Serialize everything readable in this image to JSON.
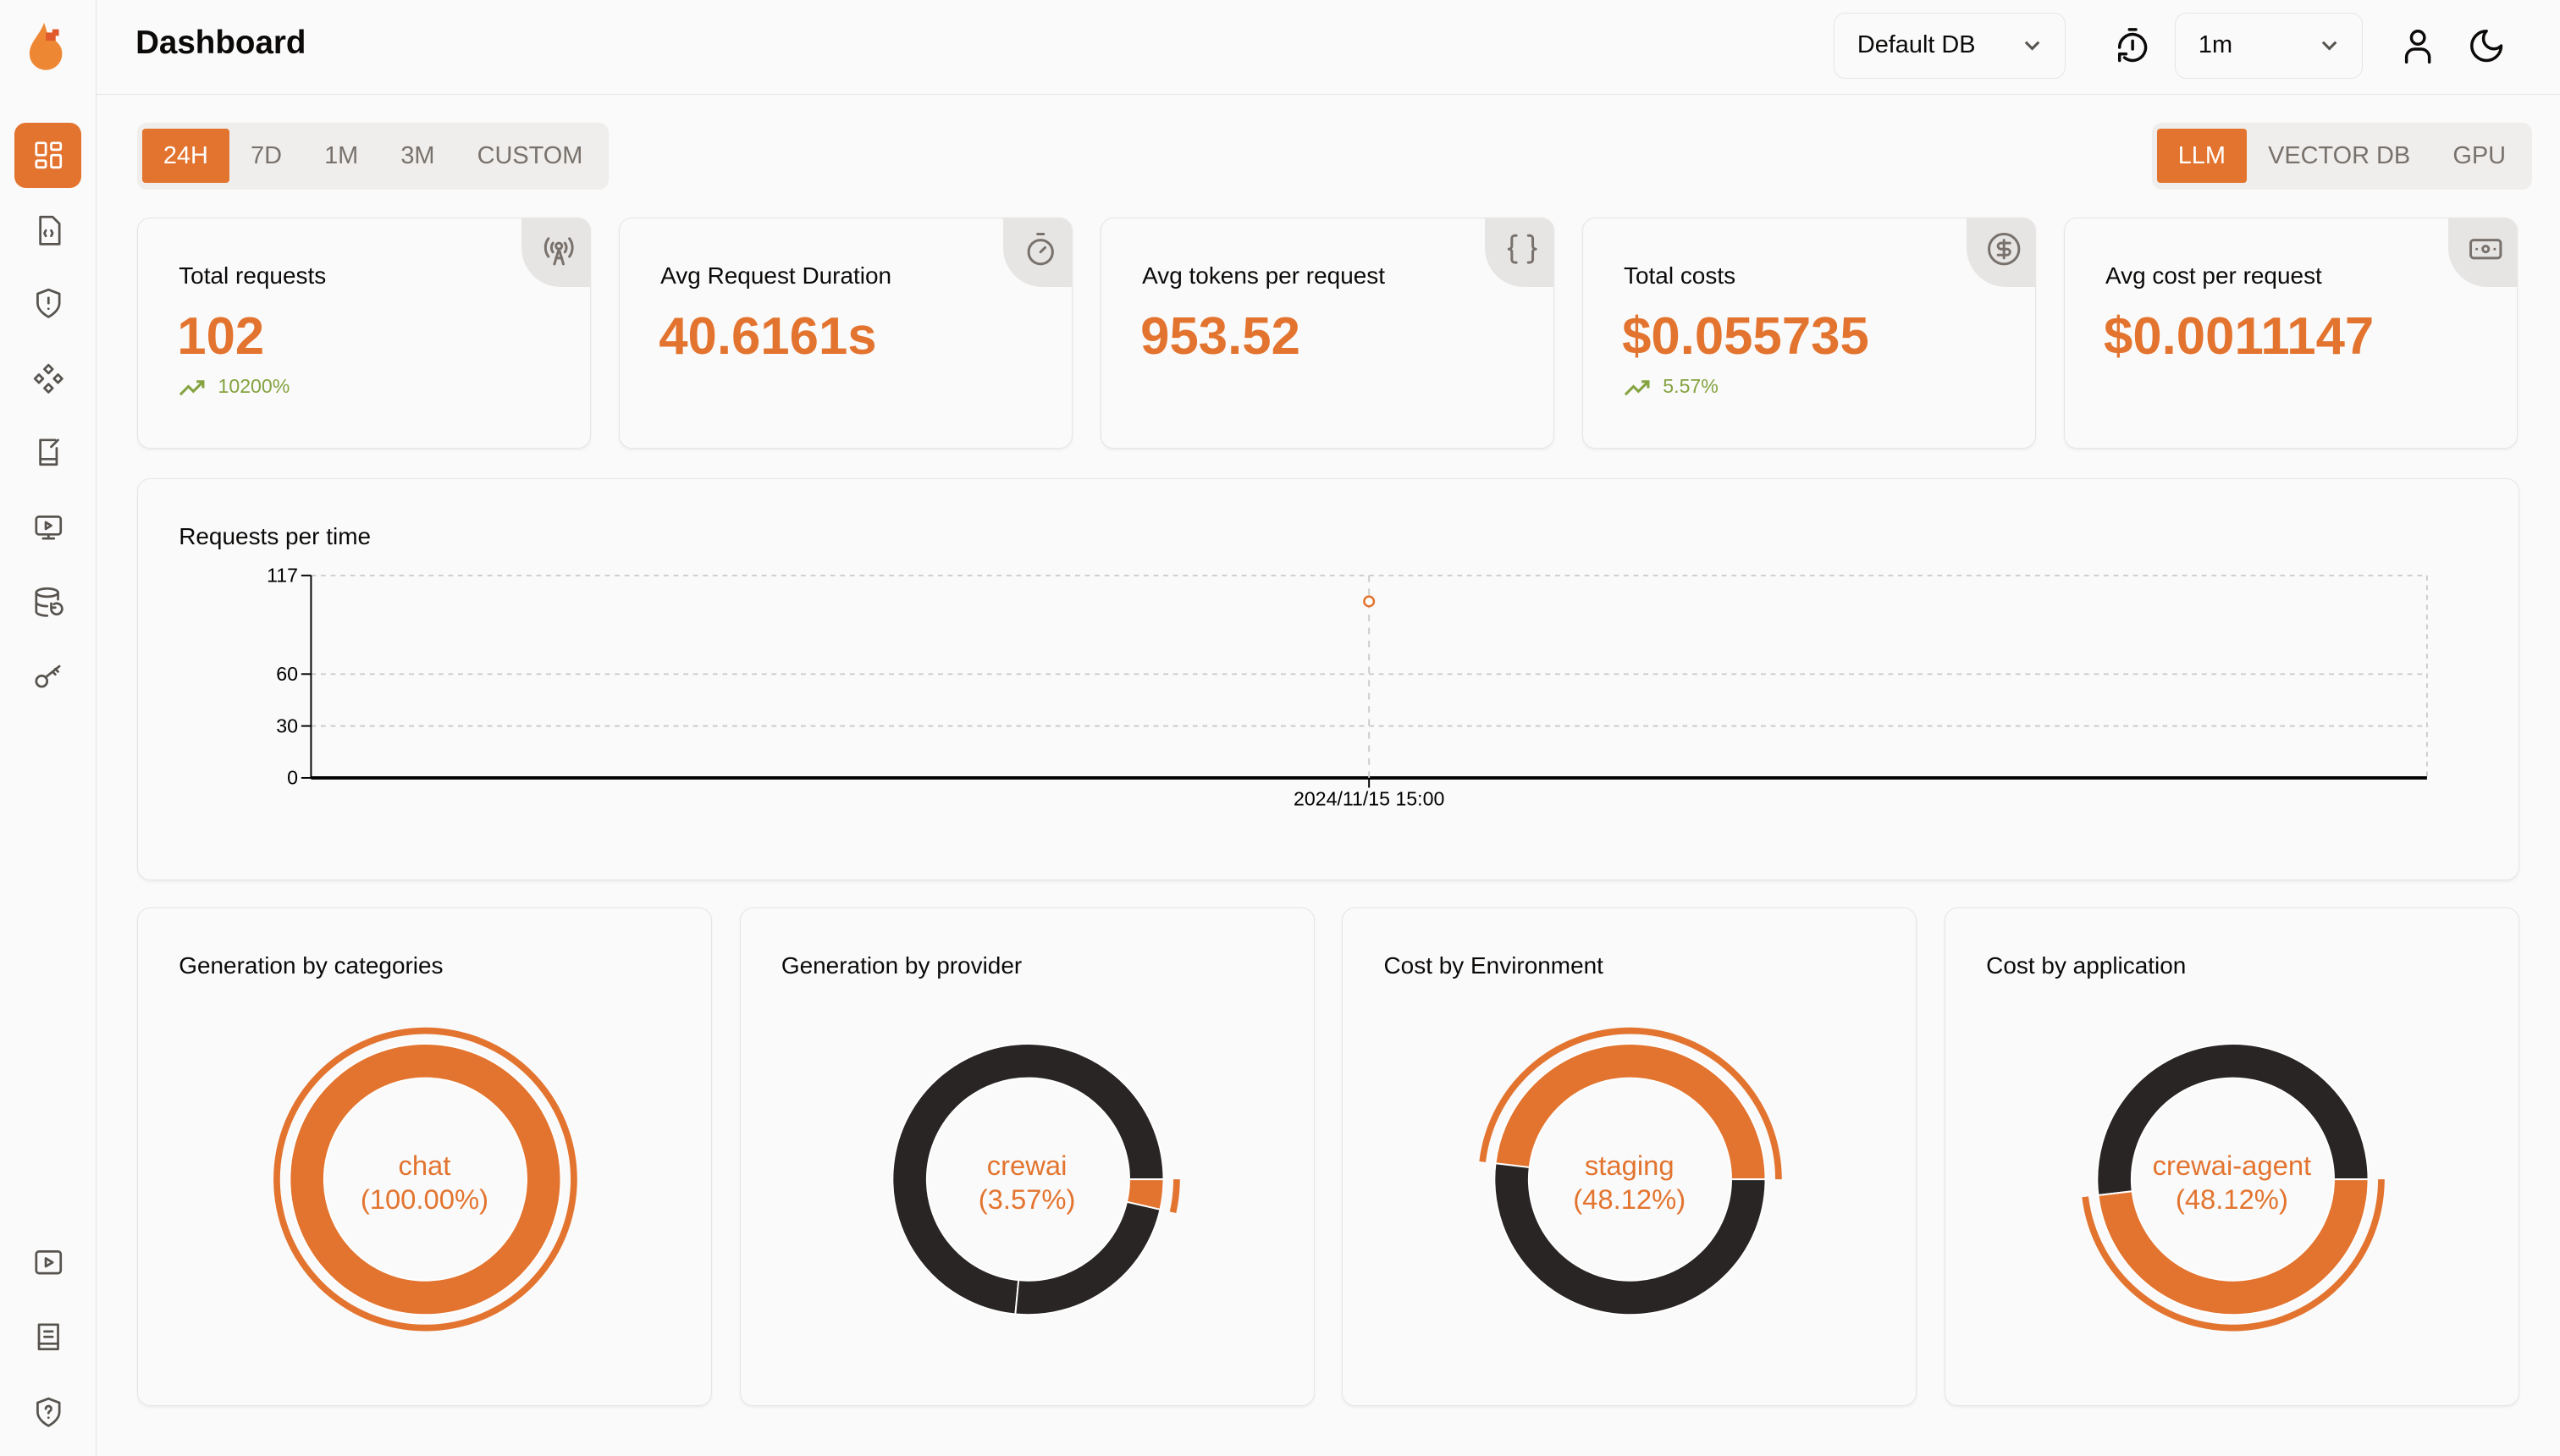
{
  "header": {
    "title": "Dashboard",
    "db_select": "Default DB",
    "refresh_select": "1m",
    "icons": [
      "timer-refresh-icon",
      "user-icon",
      "moon-icon"
    ]
  },
  "sidebar": {
    "items": [
      {
        "icon": "dashboard-icon",
        "active": true
      },
      {
        "icon": "file-code-icon"
      },
      {
        "icon": "shield-alert-icon"
      },
      {
        "icon": "components-icon"
      },
      {
        "icon": "notebook-pen-icon"
      },
      {
        "icon": "monitor-play-icon"
      },
      {
        "icon": "database-restore-icon"
      },
      {
        "icon": "key-icon"
      }
    ],
    "bottom_items": [
      {
        "icon": "video-icon"
      },
      {
        "icon": "book-icon"
      },
      {
        "icon": "shield-question-icon"
      }
    ]
  },
  "time_tabs": [
    "24H",
    "7D",
    "1M",
    "3M",
    "CUSTOM"
  ],
  "time_tab_active": "24H",
  "type_tabs": [
    "LLM",
    "VECTOR DB",
    "GPU"
  ],
  "type_tab_active": "LLM",
  "stats": [
    {
      "label": "Total requests",
      "value": "102",
      "trend": "10200%",
      "icon": "antenna-icon"
    },
    {
      "label": "Avg Request Duration",
      "value": "40.6161s",
      "icon": "timer-icon"
    },
    {
      "label": "Avg tokens per request",
      "value": "953.52",
      "icon": "braces-icon"
    },
    {
      "label": "Total costs",
      "value": "$0.055735",
      "trend": "5.57%",
      "icon": "dollar-circle-icon"
    },
    {
      "label": "Avg cost per request",
      "value": "$0.0011147",
      "icon": "banknote-icon"
    }
  ],
  "colors": {
    "accent": "#e3742f",
    "dark": "#292524",
    "trend_up": "#84a33f"
  },
  "chart_data": [
    {
      "type": "scatter",
      "title": "Requests per time",
      "x": [
        "2024/11/15 15:00"
      ],
      "y": [
        102
      ],
      "yticks": [
        0,
        30,
        60,
        117
      ],
      "ylim": [
        0,
        117
      ],
      "grid": true
    },
    {
      "type": "pie",
      "title": "Generation by categories",
      "active_label": "chat",
      "active_percent": "(100.00%)",
      "slices": [
        {
          "name": "chat",
          "value": 100,
          "color": "#e3742f"
        }
      ]
    },
    {
      "type": "pie",
      "title": "Generation by provider",
      "active_label": "crewai",
      "active_percent": "(3.57%)",
      "slices": [
        {
          "value": 73.5,
          "color": "#292524"
        },
        {
          "value": 22.93,
          "color": "#292524"
        },
        {
          "name": "crewai",
          "value": 3.57,
          "color": "#e3742f"
        }
      ]
    },
    {
      "type": "pie",
      "title": "Cost by Environment",
      "active_label": "staging",
      "active_percent": "(48.12%)",
      "slices": [
        {
          "name": "staging",
          "value": 48.12,
          "color": "#e3742f"
        },
        {
          "value": 51.88,
          "color": "#292524"
        }
      ]
    },
    {
      "type": "pie",
      "title": "Cost by application",
      "active_label": "crewai-agent",
      "active_percent": "(48.12%)",
      "slices": [
        {
          "value": 51.88,
          "color": "#292524"
        },
        {
          "name": "crewai-agent",
          "value": 48.12,
          "color": "#e3742f"
        }
      ]
    }
  ]
}
